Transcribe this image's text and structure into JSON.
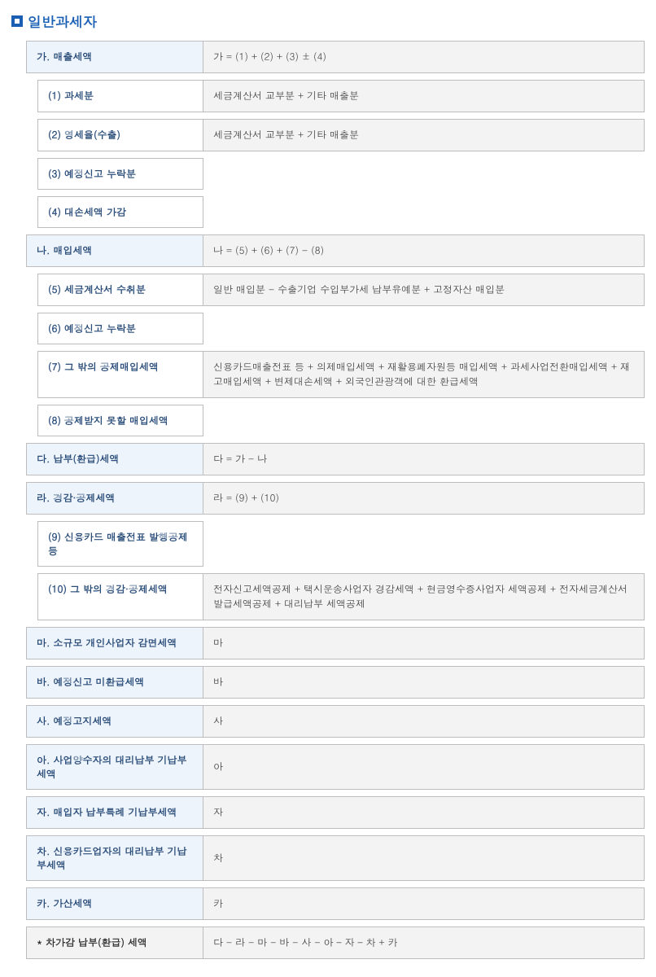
{
  "title": "일반과세자",
  "rows": [
    {
      "type": "header",
      "label": "가. 매출세액",
      "desc": "가 = (1) + (2) + (3) ± (4)"
    },
    {
      "type": "sub",
      "indent": true,
      "label": "(1) 과세분",
      "desc": "세금계산서 교부분 + 기타 매출분"
    },
    {
      "type": "sub",
      "indent": true,
      "label": "(2) 영세율(수출)",
      "desc": "세금계산서 교부분 + 기타 매출분"
    },
    {
      "type": "sub-solo",
      "indent": true,
      "label": "(3) 예정신고 누락분"
    },
    {
      "type": "sub-solo",
      "indent": true,
      "label": "(4) 대손세액 가감"
    },
    {
      "type": "header",
      "label": "나. 매입세액",
      "desc": "나 = (5) + (6) + (7) - (8)"
    },
    {
      "type": "sub",
      "indent": true,
      "label": "(5) 세금계산서 수취분",
      "desc": "일반 매입분 - 수출기업 수입부가세 납부유예분 + 고정자산 매입분"
    },
    {
      "type": "sub-solo",
      "indent": true,
      "label": "(6) 예정신고 누락분"
    },
    {
      "type": "sub",
      "indent": true,
      "label": "(7) 그 밖의 공제매입세액",
      "desc": "신용카드매출전표 등 + 의제매입세액 + 재활용폐자원등 매입세액 + 과세사업전환매입세액 + 재고매입세액 + 변제대손세액 + 외국인관광객에 대한 환급세액"
    },
    {
      "type": "sub-solo",
      "indent": true,
      "label": "(8) 공제받지 못할 매입세액"
    },
    {
      "type": "header",
      "label": "다. 납부(환급)세액",
      "desc": "다 = 가 - 나"
    },
    {
      "type": "header",
      "label": "라. 경감·공제세액",
      "desc": "라 = (9) + (10)"
    },
    {
      "type": "sub-solo",
      "indent": true,
      "label": "(9) 신용카드 매출전표 발행공제 등"
    },
    {
      "type": "sub",
      "indent": true,
      "label": "(10) 그 밖의 경감·공제세액",
      "desc": "전자신고세액공제 + 택시운송사업자 경감세액 + 현금영수증사업자 세액공제 + 전자세금계산서 발급세액공제 + 대리납부 세액공제"
    },
    {
      "type": "header",
      "label": "마. 소규모 개인사업자 감면세액",
      "desc": "마"
    },
    {
      "type": "header",
      "label": "바. 예정신고 미환급세액",
      "desc": "바"
    },
    {
      "type": "header",
      "label": "사. 예정고지세액",
      "desc": "사"
    },
    {
      "type": "header",
      "label": "아. 사업양수자의 대리납부 기납부세액",
      "desc": "아"
    },
    {
      "type": "header",
      "label": "자. 매입자 납부특례 기납부세액",
      "desc": "자"
    },
    {
      "type": "header",
      "label": "차. 신용카드업자의 대리납부 기납부세액",
      "desc": "차"
    },
    {
      "type": "header",
      "label": "카. 가산세액",
      "desc": "카"
    },
    {
      "type": "header-final",
      "label": "* 차가감 납부(환급) 세액",
      "desc": "다 - 라 - 마 - 바 - 사 - 아 – 자 – 차 + 카"
    }
  ]
}
